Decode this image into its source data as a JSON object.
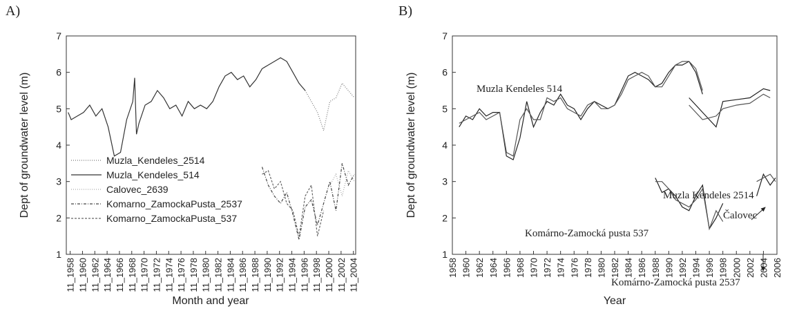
{
  "chart_data": [
    {
      "type": "line",
      "label": "A)",
      "xlabel": "Month and year",
      "ylabel": "Dept of groundwater level (m)",
      "xlim": [
        1958.2,
        2005.2
      ],
      "ylim": [
        1,
        7
      ],
      "yticks": [
        1,
        2,
        3,
        4,
        5,
        6,
        7
      ],
      "xticks": [
        {
          "value": 1958.83,
          "label": "11_1958"
        },
        {
          "value": 1960.83,
          "label": "11_1960"
        },
        {
          "value": 1962.83,
          "label": "11_1962"
        },
        {
          "value": 1964.83,
          "label": "11_1964"
        },
        {
          "value": 1966.83,
          "label": "11_1966"
        },
        {
          "value": 1968.83,
          "label": "11_1968"
        },
        {
          "value": 1970.83,
          "label": "11_1970"
        },
        {
          "value": 1972.83,
          "label": "11_1972"
        },
        {
          "value": 1974.83,
          "label": "11_1974"
        },
        {
          "value": 1976.83,
          "label": "11_1976"
        },
        {
          "value": 1978.83,
          "label": "11_1978"
        },
        {
          "value": 1980.83,
          "label": "11_1980"
        },
        {
          "value": 1982.83,
          "label": "11_1982"
        },
        {
          "value": 1984.83,
          "label": "11_1984"
        },
        {
          "value": 1986.83,
          "label": "11_1986"
        },
        {
          "value": 1988.83,
          "label": "11_1988"
        },
        {
          "value": 1990.83,
          "label": "11_1990"
        },
        {
          "value": 1992.83,
          "label": "11_1992"
        },
        {
          "value": 1994.83,
          "label": "11_1994"
        },
        {
          "value": 1996.83,
          "label": "11_1996"
        },
        {
          "value": 1998.83,
          "label": "11_1998"
        },
        {
          "value": 2000.83,
          "label": "11_2000"
        },
        {
          "value": 2002.83,
          "label": "11_2002"
        },
        {
          "value": 2004.83,
          "label": "11_2004"
        }
      ],
      "series": [
        {
          "name": "Muzla_Kendeles_2514",
          "color": "#777777",
          "dash": "1,2",
          "x": [
            1997,
            1998,
            1999,
            2000,
            2001,
            2002,
            2003,
            2004,
            2005
          ],
          "values": [
            5.5,
            5.2,
            4.9,
            4.4,
            5.2,
            5.3,
            5.7,
            5.5,
            5.3
          ]
        },
        {
          "name": "Muzla_Kendeles_514",
          "color": "#333333",
          "dash": "none",
          "x": [
            1958.5,
            1959,
            1960,
            1961,
            1962,
            1963,
            1964,
            1965,
            1966,
            1967,
            1968,
            1969,
            1969.3,
            1969.6,
            1970,
            1971,
            1972,
            1973,
            1974,
            1975,
            1976,
            1977,
            1978,
            1979,
            1980,
            1981,
            1982,
            1983,
            1984,
            1985,
            1986,
            1987,
            1988,
            1989,
            1990,
            1991,
            1992,
            1993,
            1994,
            1995,
            1996,
            1997
          ],
          "values": [
            4.9,
            4.7,
            4.8,
            4.9,
            5.1,
            4.8,
            5.0,
            4.5,
            3.7,
            3.8,
            4.7,
            5.2,
            5.85,
            4.3,
            4.6,
            5.1,
            5.2,
            5.5,
            5.3,
            5.0,
            5.1,
            4.8,
            5.2,
            5.0,
            5.1,
            5.0,
            5.2,
            5.6,
            5.9,
            6.0,
            5.8,
            5.9,
            5.6,
            5.8,
            6.1,
            6.2,
            6.3,
            6.4,
            6.3,
            6.0,
            5.7,
            5.5
          ]
        },
        {
          "name": "Calovec_2639",
          "color": "#aaaaaa",
          "dash": "1,2",
          "x": [
            2001,
            2002,
            2003,
            2004,
            2005
          ],
          "values": [
            2.9,
            3.2,
            2.6,
            3.3,
            3.0
          ]
        },
        {
          "name": "Komarno_ZamockaPusta_2537",
          "color": "#444444",
          "dash": "4,2,1,2",
          "x": [
            1990,
            1991,
            1992,
            1993,
            1994,
            1995,
            1996,
            1997,
            1998,
            1999,
            2000,
            2001,
            2002,
            2003,
            2004,
            2005
          ],
          "values": [
            3.4,
            2.9,
            2.6,
            2.4,
            2.7,
            2.1,
            1.4,
            2.3,
            2.5,
            1.8,
            2.4,
            3.0,
            2.2,
            3.5,
            2.9,
            3.2
          ]
        },
        {
          "name": "Komarno_ZamockaPusta_537",
          "color": "#666666",
          "dash": "3,2",
          "x": [
            1990,
            1991,
            1992,
            1993,
            1994,
            1995,
            1996,
            1997,
            1998,
            1999,
            2000
          ],
          "values": [
            3.2,
            3.3,
            2.8,
            3.0,
            2.4,
            2.2,
            1.5,
            2.6,
            2.9,
            1.5,
            2.2
          ]
        }
      ]
    },
    {
      "type": "line",
      "label": "B)",
      "xlabel": "Year",
      "ylabel": "Dept of groundwater level (m)",
      "xlim": [
        1958,
        2006
      ],
      "ylim": [
        1,
        7
      ],
      "yticks": [
        1,
        2,
        3,
        4,
        5,
        6,
        7
      ],
      "xticks": [
        1958,
        1960,
        1962,
        1964,
        1966,
        1968,
        1970,
        1972,
        1974,
        1976,
        1978,
        1980,
        1982,
        1984,
        1986,
        1988,
        1990,
        1992,
        1994,
        1996,
        1998,
        2000,
        2002,
        2004,
        2006
      ],
      "annotations": [
        "Muzla Kendeles 514",
        "Muzla Kendeles 2514",
        "Čalovec",
        "Komárno-Zamocká pusta 537",
        "Komárno-Zamocká pusta 2537"
      ],
      "series": [
        {
          "color": "#222222",
          "x": [
            1959,
            1960,
            1961,
            1962,
            1963,
            1964,
            1965,
            1966,
            1967,
            1968,
            1969,
            1970,
            1971,
            1972,
            1973,
            1974,
            1975,
            1976,
            1977,
            1978,
            1979,
            1980,
            1981,
            1982,
            1983,
            1984,
            1985,
            1986,
            1987,
            1988,
            1989,
            1990,
            1991,
            1992,
            1993,
            1994,
            1995
          ],
          "values": [
            4.5,
            4.8,
            4.7,
            5.0,
            4.8,
            4.9,
            4.9,
            3.7,
            3.6,
            4.2,
            5.2,
            4.5,
            4.9,
            5.2,
            5.1,
            5.4,
            5.1,
            5.0,
            4.7,
            5.0,
            5.2,
            5.1,
            5.0,
            5.1,
            5.5,
            5.9,
            6.0,
            5.9,
            5.8,
            5.6,
            5.7,
            6.0,
            6.2,
            6.2,
            6.3,
            6.0,
            5.4
          ]
        },
        {
          "color": "#555555",
          "x": [
            1959,
            1960,
            1961,
            1962,
            1963,
            1964,
            1965,
            1966,
            1967,
            1968,
            1969,
            1970,
            1971,
            1972,
            1973,
            1974,
            1975,
            1976,
            1977,
            1978,
            1979,
            1980,
            1981,
            1982,
            1983,
            1984,
            1985,
            1986,
            1987,
            1988,
            1989,
            1990,
            1991,
            1992,
            1993,
            1994,
            1995
          ],
          "values": [
            4.6,
            4.7,
            4.8,
            4.9,
            4.7,
            4.8,
            4.9,
            3.8,
            3.7,
            4.7,
            5.0,
            4.7,
            4.7,
            5.3,
            5.2,
            5.3,
            5.0,
            4.9,
            4.8,
            5.1,
            5.2,
            5.0,
            5.0,
            5.1,
            5.4,
            5.8,
            5.9,
            6.0,
            5.9,
            5.6,
            5.6,
            5.9,
            6.2,
            6.3,
            6.3,
            6.1,
            5.5
          ]
        },
        {
          "color": "#222222",
          "x": [
            1993,
            1995,
            1997,
            1998,
            2000,
            2002,
            2004,
            2005
          ],
          "values": [
            5.3,
            4.9,
            4.5,
            5.2,
            5.25,
            5.3,
            5.55,
            5.5
          ]
        },
        {
          "color": "#555555",
          "x": [
            1993,
            1995,
            1997,
            1998,
            2000,
            2002,
            2004,
            2005
          ],
          "values": [
            5.1,
            4.7,
            4.8,
            5.0,
            5.1,
            5.15,
            5.4,
            5.3
          ]
        },
        {
          "color": "#222222",
          "x": [
            1988,
            1989,
            1990,
            1991,
            1992,
            1993,
            1994,
            1995,
            1996,
            1997,
            1998
          ],
          "values": [
            3.1,
            2.7,
            2.8,
            2.6,
            2.3,
            2.2,
            2.6,
            2.9,
            1.7,
            2.0,
            2.4
          ]
        },
        {
          "color": "#555555",
          "x": [
            1988,
            1989,
            1990,
            1991,
            1992,
            1993,
            1994,
            1995,
            1996,
            1997,
            1998
          ],
          "values": [
            3.0,
            3.0,
            2.8,
            2.5,
            2.4,
            2.3,
            2.5,
            2.8,
            1.7,
            2.2,
            1.9
          ]
        },
        {
          "color": "#222222",
          "x": [
            2003,
            2004,
            2005,
            2005.8
          ],
          "values": [
            2.6,
            3.2,
            2.9,
            3.1
          ]
        },
        {
          "color": "#555555",
          "x": [
            2003,
            2004,
            2005,
            2005.8
          ],
          "values": [
            3.0,
            3.1,
            3.2,
            3.0
          ]
        }
      ]
    }
  ]
}
